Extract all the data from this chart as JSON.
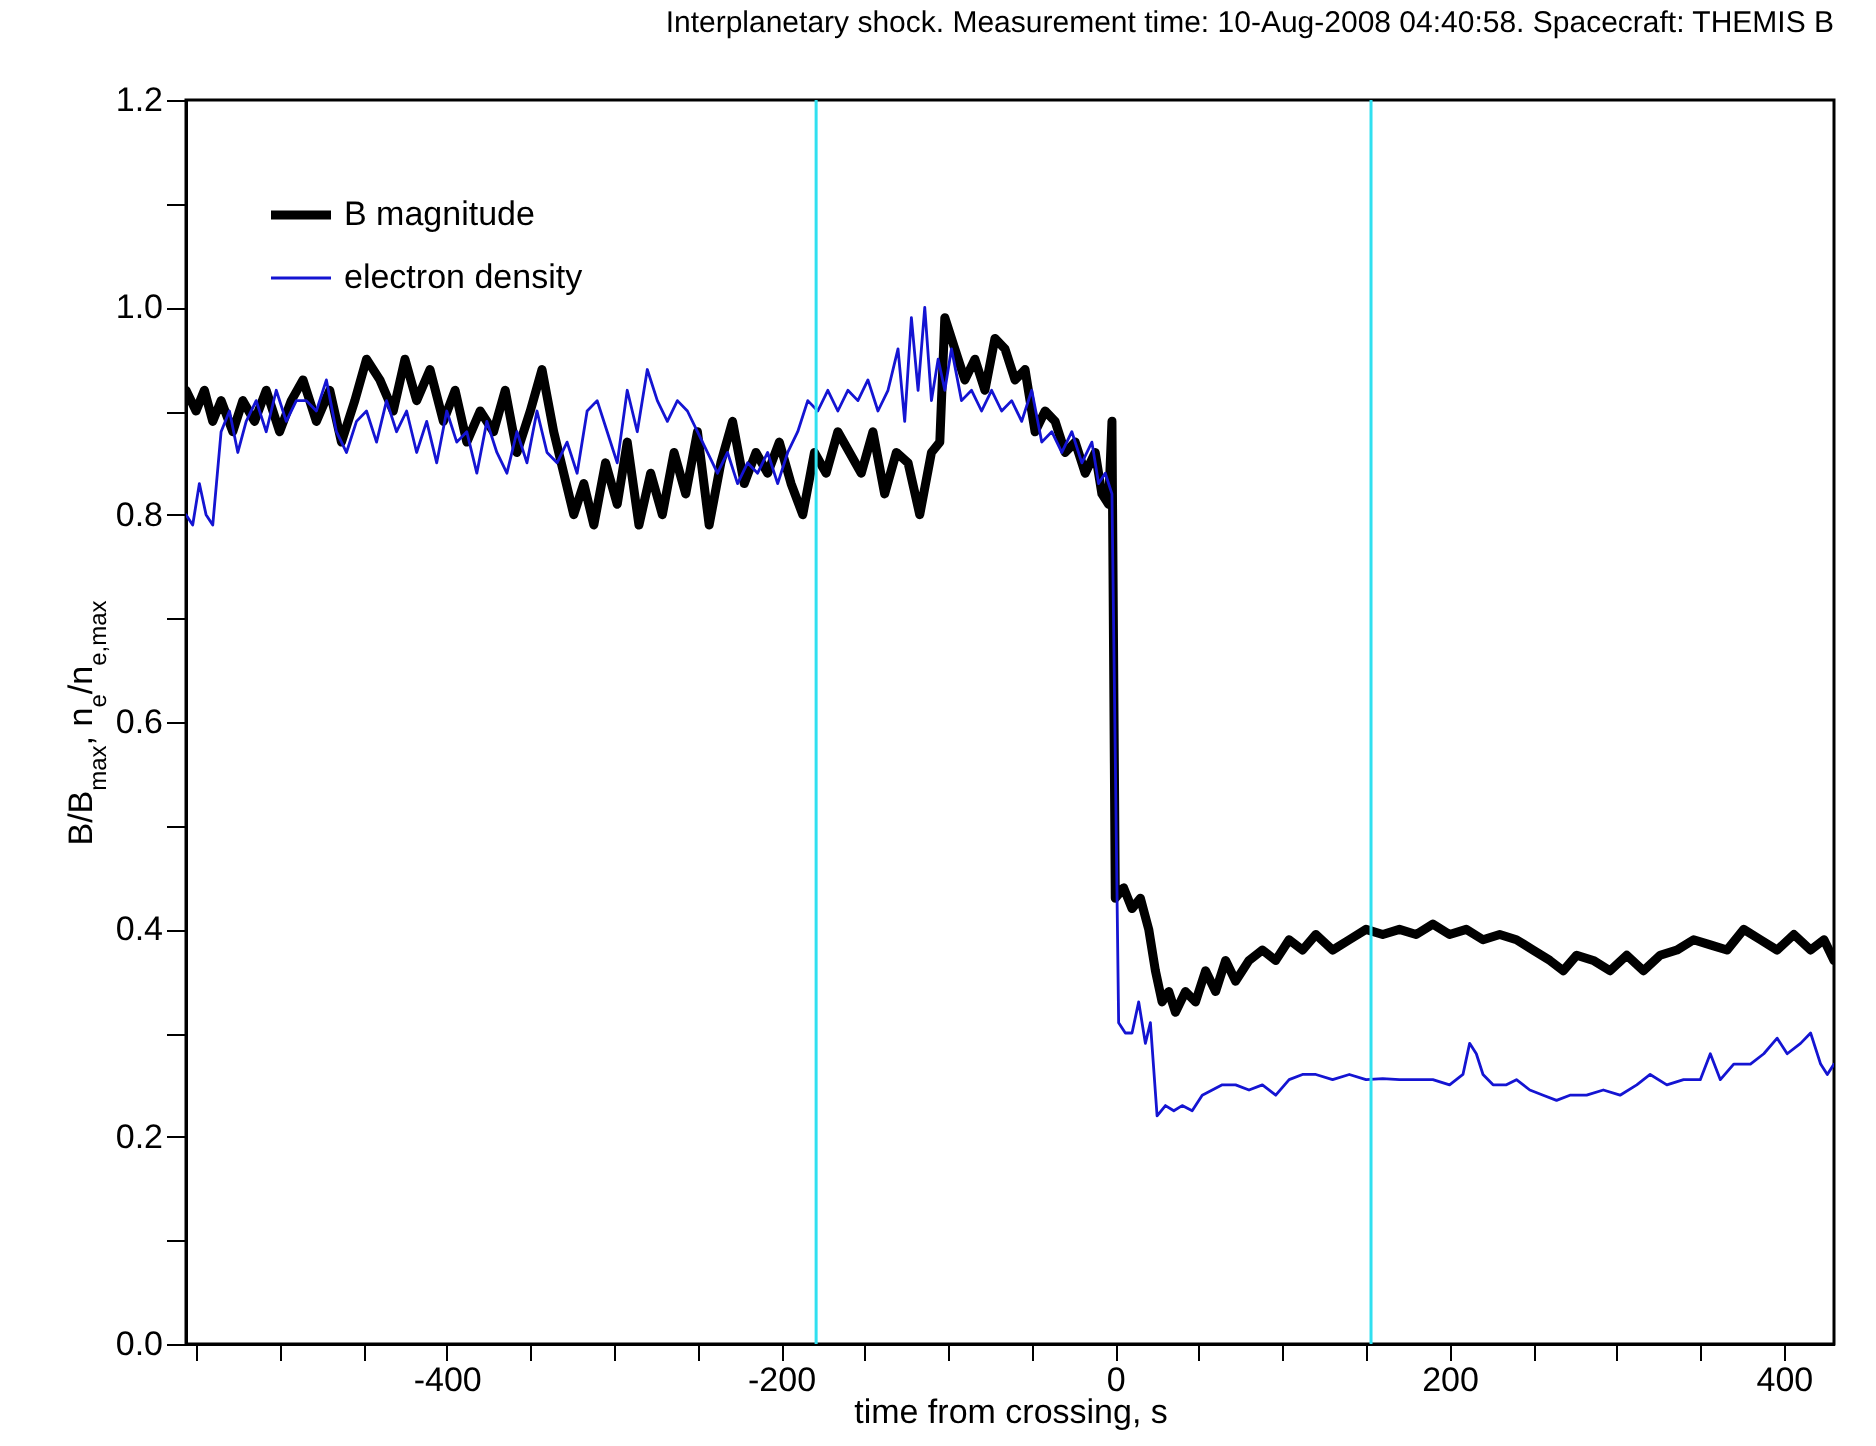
{
  "chart_data": {
    "type": "line",
    "title": "Interplanetary shock. Measurement time: 10-Aug-2008 04:40:58. Spacecraft: THEMIS B",
    "xlabel": "time from crossing, s",
    "ylabel": "B/B$_{max}$, n$_{e}$/n$_{e,max}$",
    "xlim": [
      -556,
      430
    ],
    "ylim": [
      0,
      1.2
    ],
    "xticks": [
      {
        "value": -550,
        "label": null
      },
      {
        "value": -500,
        "label": null
      },
      {
        "value": -450,
        "label": null
      },
      -400,
      {
        "value": -350,
        "label": null
      },
      {
        "value": -300,
        "label": null
      },
      {
        "value": -250,
        "label": null
      },
      -200,
      {
        "value": -150,
        "label": null
      },
      {
        "value": -100,
        "label": null
      },
      {
        "value": -50,
        "label": null
      },
      0,
      {
        "value": 50,
        "label": null
      },
      {
        "value": 100,
        "label": null
      },
      {
        "value": 150,
        "label": null
      },
      200,
      {
        "value": 250,
        "label": null
      },
      {
        "value": 300,
        "label": null
      },
      {
        "value": 350,
        "label": null
      },
      400
    ],
    "yticks": [
      {
        "value": 0,
        "label": "0.0"
      },
      {
        "value": 0.1,
        "label": null
      },
      0.2,
      {
        "value": 0.3,
        "label": null
      },
      0.4,
      {
        "value": 0.5,
        "label": null
      },
      0.6,
      {
        "value": 0.7,
        "label": null
      },
      0.8,
      {
        "value": 0.9,
        "label": null
      },
      {
        "value": 1,
        "label": "1.0"
      },
      {
        "value": 1.1,
        "label": null
      },
      1.2
    ],
    "grid": false,
    "legend": "top left",
    "marker": "none",
    "line_style": "solid",
    "ref_lines": [
      {
        "axis": "x",
        "value": -179,
        "color": "#30e0f0"
      },
      {
        "axis": "x",
        "value": 153,
        "color": "#30e0f0"
      }
    ],
    "series": [
      {
        "name": "B magnitude",
        "color": "#000000",
        "x": [
          -556,
          -550,
          -545,
          -540,
          -535,
          -528,
          -522,
          -515,
          -508,
          -500,
          -493,
          -486,
          -478,
          -470,
          -463,
          -455,
          -448,
          -440,
          -432,
          -425,
          -418,
          -410,
          -402,
          -395,
          -388,
          -380,
          -372,
          -365,
          -358,
          -350,
          -343,
          -336,
          -330,
          -324,
          -318,
          -312,
          -305,
          -298,
          -292,
          -285,
          -278,
          -271,
          -264,
          -257,
          -250,
          -243,
          -236,
          -229,
          -222,
          -215,
          -208,
          -201,
          -194,
          -187,
          -180,
          -173,
          -166,
          -159,
          -152,
          -145,
          -138,
          -131,
          -124,
          -117,
          -110,
          -105,
          -102,
          -96,
          -90,
          -84,
          -78,
          -72,
          -66,
          -60,
          -54,
          -48,
          -42,
          -36,
          -30,
          -24,
          -18,
          -12,
          -8,
          -4,
          -2,
          0,
          5,
          10,
          15,
          20,
          24,
          28,
          32,
          36,
          42,
          48,
          54,
          60,
          66,
          72,
          80,
          88,
          96,
          104,
          112,
          120,
          130,
          140,
          150,
          160,
          170,
          180,
          190,
          200,
          210,
          220,
          230,
          240,
          250,
          260,
          268,
          276,
          286,
          296,
          306,
          316,
          326,
          336,
          346,
          356,
          366,
          376,
          386,
          396,
          406,
          416,
          424,
          430
        ],
        "values": [
          0.92,
          0.9,
          0.92,
          0.89,
          0.91,
          0.88,
          0.91,
          0.89,
          0.92,
          0.88,
          0.91,
          0.93,
          0.89,
          0.92,
          0.87,
          0.91,
          0.95,
          0.93,
          0.9,
          0.95,
          0.91,
          0.94,
          0.89,
          0.92,
          0.87,
          0.9,
          0.88,
          0.92,
          0.86,
          0.9,
          0.94,
          0.88,
          0.84,
          0.8,
          0.83,
          0.79,
          0.85,
          0.81,
          0.87,
          0.79,
          0.84,
          0.8,
          0.86,
          0.82,
          0.88,
          0.79,
          0.85,
          0.89,
          0.83,
          0.86,
          0.84,
          0.87,
          0.83,
          0.8,
          0.86,
          0.84,
          0.88,
          0.86,
          0.84,
          0.88,
          0.82,
          0.86,
          0.85,
          0.8,
          0.86,
          0.87,
          0.99,
          0.96,
          0.93,
          0.95,
          0.92,
          0.97,
          0.96,
          0.93,
          0.94,
          0.88,
          0.9,
          0.89,
          0.86,
          0.87,
          0.84,
          0.86,
          0.82,
          0.81,
          0.89,
          0.43,
          0.44,
          0.42,
          0.43,
          0.4,
          0.36,
          0.33,
          0.34,
          0.32,
          0.34,
          0.33,
          0.36,
          0.34,
          0.37,
          0.35,
          0.37,
          0.38,
          0.37,
          0.39,
          0.38,
          0.395,
          0.38,
          0.39,
          0.4,
          0.395,
          0.4,
          0.395,
          0.405,
          0.395,
          0.4,
          0.39,
          0.395,
          0.39,
          0.38,
          0.37,
          0.36,
          0.375,
          0.37,
          0.36,
          0.375,
          0.36,
          0.375,
          0.38,
          0.39,
          0.385,
          0.38,
          0.4,
          0.39,
          0.38,
          0.395,
          0.38,
          0.39,
          0.37
        ]
      },
      {
        "name": "electron density",
        "color": "#1414d2",
        "x": [
          -556,
          -552,
          -548,
          -544,
          -540,
          -535,
          -530,
          -525,
          -520,
          -514,
          -508,
          -502,
          -496,
          -490,
          -484,
          -478,
          -472,
          -466,
          -460,
          -454,
          -448,
          -442,
          -436,
          -430,
          -424,
          -418,
          -412,
          -406,
          -400,
          -394,
          -388,
          -382,
          -376,
          -370,
          -364,
          -358,
          -352,
          -346,
          -340,
          -334,
          -328,
          -322,
          -316,
          -310,
          -304,
          -298,
          -292,
          -286,
          -280,
          -274,
          -268,
          -262,
          -256,
          -250,
          -244,
          -238,
          -232,
          -226,
          -220,
          -214,
          -208,
          -202,
          -196,
          -190,
          -184,
          -178,
          -172,
          -166,
          -160,
          -154,
          -148,
          -142,
          -136,
          -130,
          -126,
          -122,
          -118,
          -114,
          -110,
          -106,
          -102,
          -98,
          -92,
          -86,
          -80,
          -74,
          -68,
          -62,
          -56,
          -50,
          -44,
          -38,
          -32,
          -26,
          -20,
          -14,
          -10,
          -6,
          -2,
          2,
          6,
          10,
          14,
          18,
          21,
          25,
          30,
          35,
          40,
          46,
          52,
          58,
          64,
          72,
          80,
          88,
          96,
          104,
          112,
          120,
          130,
          140,
          150,
          160,
          170,
          180,
          190,
          200,
          208,
          212,
          216,
          220,
          226,
          234,
          240,
          248,
          256,
          264,
          272,
          282,
          292,
          302,
          312,
          320,
          330,
          340,
          350,
          356,
          362,
          370,
          380,
          388,
          396,
          402,
          410,
          416,
          422,
          426,
          430
        ],
        "values": [
          0.8,
          0.79,
          0.83,
          0.8,
          0.79,
          0.88,
          0.9,
          0.86,
          0.89,
          0.91,
          0.88,
          0.92,
          0.89,
          0.91,
          0.91,
          0.9,
          0.93,
          0.88,
          0.86,
          0.89,
          0.9,
          0.87,
          0.91,
          0.88,
          0.9,
          0.86,
          0.89,
          0.85,
          0.9,
          0.87,
          0.88,
          0.84,
          0.89,
          0.86,
          0.84,
          0.88,
          0.85,
          0.9,
          0.86,
          0.85,
          0.87,
          0.84,
          0.9,
          0.91,
          0.88,
          0.85,
          0.92,
          0.88,
          0.94,
          0.91,
          0.89,
          0.91,
          0.9,
          0.88,
          0.86,
          0.84,
          0.86,
          0.83,
          0.85,
          0.84,
          0.86,
          0.83,
          0.86,
          0.88,
          0.91,
          0.9,
          0.92,
          0.9,
          0.92,
          0.91,
          0.93,
          0.9,
          0.92,
          0.96,
          0.89,
          0.99,
          0.92,
          1.0,
          0.91,
          0.95,
          0.92,
          0.96,
          0.91,
          0.92,
          0.9,
          0.92,
          0.9,
          0.91,
          0.89,
          0.92,
          0.87,
          0.88,
          0.86,
          0.88,
          0.85,
          0.87,
          0.83,
          0.84,
          0.82,
          0.31,
          0.3,
          0.3,
          0.33,
          0.29,
          0.31,
          0.22,
          0.23,
          0.225,
          0.23,
          0.225,
          0.24,
          0.245,
          0.25,
          0.25,
          0.245,
          0.25,
          0.24,
          0.255,
          0.26,
          0.26,
          0.255,
          0.26,
          0.255,
          0.256,
          0.255,
          0.255,
          0.255,
          0.25,
          0.26,
          0.29,
          0.28,
          0.26,
          0.25,
          0.25,
          0.255,
          0.245,
          0.24,
          0.235,
          0.24,
          0.24,
          0.245,
          0.24,
          0.25,
          0.26,
          0.25,
          0.255,
          0.255,
          0.28,
          0.255,
          0.27,
          0.27,
          0.28,
          0.295,
          0.28,
          0.29,
          0.3,
          0.27,
          0.26,
          0.27
        ]
      }
    ]
  }
}
